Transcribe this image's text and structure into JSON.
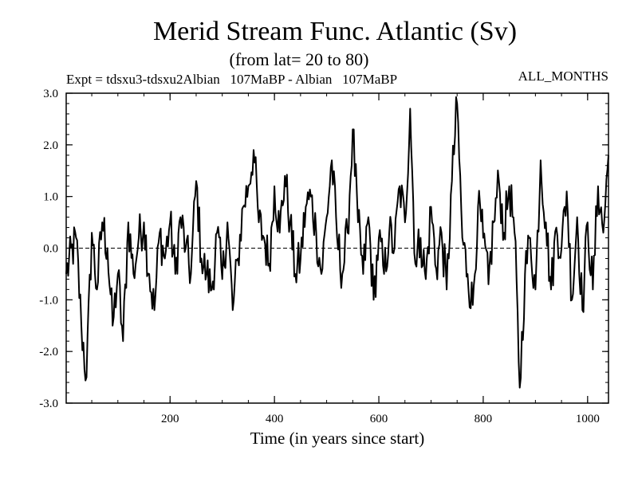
{
  "chart_data": {
    "type": "line",
    "title": "Merid Stream Func. Atlantic (Sv)",
    "subtitle": "(from lat= 20 to 80)",
    "experiment_label": "Expt = tdsxu3-tdsxu2Albian   107MaBP - Albian   107MaBP",
    "period_label": "ALL_MONTHS",
    "xlabel": "Time (in years since start)",
    "ylabel": "",
    "xlim": [
      1,
      1040
    ],
    "ylim": [
      -3.0,
      3.0
    ],
    "x_ticks": [
      200,
      400,
      600,
      800,
      1000
    ],
    "x_tick_labels": [
      "200",
      "400",
      "600",
      "800",
      "1000"
    ],
    "y_ticks": [
      -3.0,
      -2.0,
      -1.0,
      0.0,
      1.0,
      2.0,
      3.0
    ],
    "y_tick_labels": [
      "-3.0",
      "-2.0",
      "-1.0",
      "0.0",
      "1.0",
      "2.0",
      "3.0"
    ],
    "zero_line": true,
    "series": [
      {
        "name": "Merid Stream Func. Atlantic",
        "x": [
          1,
          20,
          30,
          40,
          50,
          60,
          70,
          80,
          90,
          100,
          110,
          120,
          130,
          140,
          150,
          160,
          170,
          180,
          190,
          200,
          210,
          220,
          230,
          240,
          250,
          260,
          270,
          280,
          290,
          300,
          310,
          320,
          330,
          340,
          350,
          360,
          370,
          380,
          390,
          400,
          410,
          420,
          430,
          440,
          450,
          460,
          470,
          480,
          490,
          500,
          510,
          520,
          530,
          540,
          550,
          560,
          570,
          580,
          590,
          600,
          610,
          620,
          630,
          640,
          650,
          660,
          670,
          680,
          690,
          700,
          710,
          720,
          730,
          740,
          750,
          760,
          770,
          780,
          790,
          800,
          810,
          820,
          830,
          840,
          850,
          860,
          870,
          880,
          890,
          900,
          910,
          920,
          930,
          940,
          950,
          960,
          970,
          980,
          990,
          1000,
          1010,
          1020,
          1030,
          1040
        ],
        "values": [
          -0.5,
          0.2,
          -1.5,
          -2.5,
          0.3,
          -0.8,
          0.5,
          0.0,
          -1.5,
          -0.5,
          -1.8,
          0.5,
          -0.5,
          0.2,
          0.5,
          -0.5,
          -1.2,
          0.3,
          -0.2,
          0.5,
          -0.5,
          0.6,
          0.0,
          -0.5,
          1.3,
          -0.2,
          -0.5,
          -0.8,
          0.3,
          -0.6,
          0.5,
          -1.2,
          -0.2,
          0.8,
          1.2,
          1.9,
          0.5,
          0.2,
          -0.3,
          1.2,
          0.3,
          1.4,
          0.5,
          -0.5,
          -0.2,
          0.8,
          1.0,
          0.3,
          -0.5,
          0.6,
          1.7,
          0.2,
          -0.5,
          0.3,
          2.3,
          0.5,
          -0.5,
          0.6,
          -1.0,
          0.2,
          -0.5,
          0.3,
          0.0,
          1.2,
          0.5,
          2.7,
          -0.3,
          0.2,
          -0.6,
          0.8,
          -0.4,
          0.3,
          -0.8,
          1.3,
          2.8,
          0.2,
          -0.5,
          -1.1,
          0.8,
          0.2,
          -0.7,
          0.5,
          1.3,
          0.3,
          1.2,
          0.3,
          -2.7,
          -0.5,
          0.2,
          -0.8,
          1.7,
          0.5,
          -0.8,
          0.4,
          0.0,
          1.1,
          -1.0,
          0.6,
          -1.2,
          0.5,
          -0.8,
          1.2,
          0.3,
          1.8
        ]
      }
    ]
  }
}
